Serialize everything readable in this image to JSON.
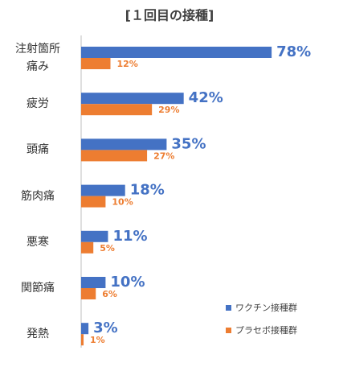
{
  "chart_data": {
    "type": "bar",
    "orientation": "horizontal",
    "title": "[１回目の接種]",
    "categories": [
      "注射箇所痛み",
      "疲労",
      "頭痛",
      "筋肉痛",
      "悪寒",
      "関節痛",
      "発熱"
    ],
    "series": [
      {
        "name": "ワクチン接種群",
        "color": "#4472c4",
        "values": [
          78,
          42,
          35,
          18,
          11,
          10,
          3
        ],
        "value_labels": [
          "78%",
          "42%",
          "35%",
          "18%",
          "11%",
          "10%",
          "3%"
        ]
      },
      {
        "name": "プラセボ接種群",
        "color": "#ed7d31",
        "values": [
          12,
          29,
          27,
          10,
          5,
          6,
          1
        ],
        "value_labels": [
          "12%",
          "29%",
          "27%",
          "10%",
          "5%",
          "6%",
          "1%"
        ]
      }
    ],
    "legend": "bottom-right"
  }
}
